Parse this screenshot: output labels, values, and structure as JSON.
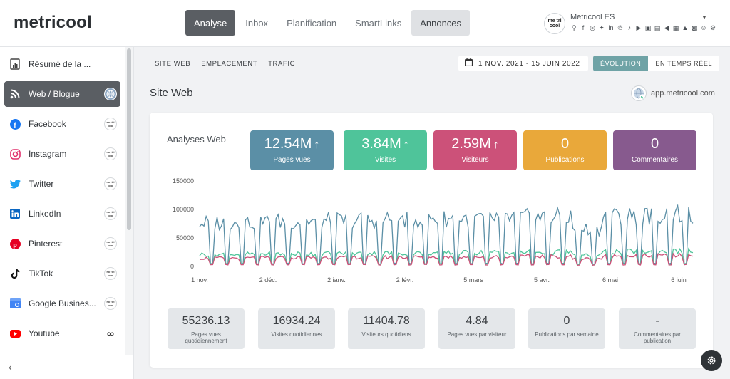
{
  "app": {
    "logo": "metricool"
  },
  "nav": [
    {
      "label": "Analyse",
      "active": true
    },
    {
      "label": "Inbox",
      "active": false
    },
    {
      "label": "Planification",
      "active": false
    },
    {
      "label": "SmartLinks",
      "active": false
    },
    {
      "label": "Annonces",
      "active": false
    }
  ],
  "brand": {
    "avatar_text": "me tri cool",
    "name": "Metricool ES"
  },
  "sidebar": {
    "items": [
      {
        "label": "Résumé de la ...",
        "icon": "summary-doc-icon",
        "badge": ""
      },
      {
        "label": "Web / Blogue",
        "icon": "rss-icon",
        "badge": "globe"
      },
      {
        "label": "Facebook",
        "icon": "facebook-icon",
        "badge": "me tri cool"
      },
      {
        "label": "Instagram",
        "icon": "instagram-icon",
        "badge": "me tri cool"
      },
      {
        "label": "Twitter",
        "icon": "twitter-icon",
        "badge": "me tri cool"
      },
      {
        "label": "LinkedIn",
        "icon": "linkedin-icon",
        "badge": "me tri cool"
      },
      {
        "label": "Pinterest",
        "icon": "pinterest-icon",
        "badge": "me tri cool"
      },
      {
        "label": "TikTok",
        "icon": "tiktok-icon",
        "badge": "me tri cool"
      },
      {
        "label": "Google Busines...",
        "icon": "google-business-icon",
        "badge": "me tri cool"
      },
      {
        "label": "Youtube",
        "icon": "youtube-icon",
        "badge": "∞"
      }
    ]
  },
  "subtabs": [
    "SITE WEB",
    "EMPLACEMENT",
    "TRAFIC"
  ],
  "date_range": "1 NOV. 2021 - 15 JUIN 2022",
  "view_toggle": {
    "evolution": "ÉVOLUTION",
    "realtime": "EN TEMPS RÉEL"
  },
  "section": {
    "title": "Site Web",
    "site": "app.metricool.com"
  },
  "card": {
    "title": "Analyses Web"
  },
  "kpis": [
    {
      "value": "12.54M",
      "arrow": "↑",
      "label": "Pages vues",
      "color": "#5b8fa6"
    },
    {
      "value": "3.84M",
      "arrow": "↑",
      "label": "Visites",
      "color": "#4fc49a"
    },
    {
      "value": "2.59M",
      "arrow": "↑",
      "label": "Visiteurs",
      "color": "#cc5179"
    },
    {
      "value": "0",
      "arrow": "",
      "label": "Publications",
      "color": "#e9a83a"
    },
    {
      "value": "0",
      "arrow": "",
      "label": "Commentaires",
      "color": "#875a8e"
    }
  ],
  "stats": [
    {
      "value": "55236.13",
      "label": "Pages vues quotidiennement"
    },
    {
      "value": "16934.24",
      "label": "Visites quotidiennes"
    },
    {
      "value": "11404.78",
      "label": "Visiteurs quotidiens"
    },
    {
      "value": "4.84",
      "label": "Pages vues par visiteur"
    },
    {
      "value": "0",
      "label": "Publications par semaine"
    },
    {
      "value": "-",
      "label": "Commentaires par publication"
    }
  ],
  "chart_data": {
    "type": "line",
    "title": "",
    "ylim": [
      0,
      150000
    ],
    "yticks": [
      "150000",
      "100000",
      "50000",
      "0"
    ],
    "xticks": [
      "1 nov.",
      "2 déc.",
      "2 janv.",
      "2 févr.",
      "5 mars",
      "5 avr.",
      "6 mai",
      "6 juin"
    ],
    "series": [
      {
        "name": "Pages vues",
        "color": "#5b8fa6",
        "weekday_level": 80000,
        "weekend_level": 5000,
        "trend_end": 95000
      },
      {
        "name": "Visites",
        "color": "#4fc49a",
        "weekday_level": 22000,
        "weekend_level": 4000,
        "trend_end": 28000
      },
      {
        "name": "Visiteurs",
        "color": "#cc5179",
        "weekday_level": 15000,
        "weekend_level": 3000,
        "trend_end": 20000
      }
    ]
  }
}
